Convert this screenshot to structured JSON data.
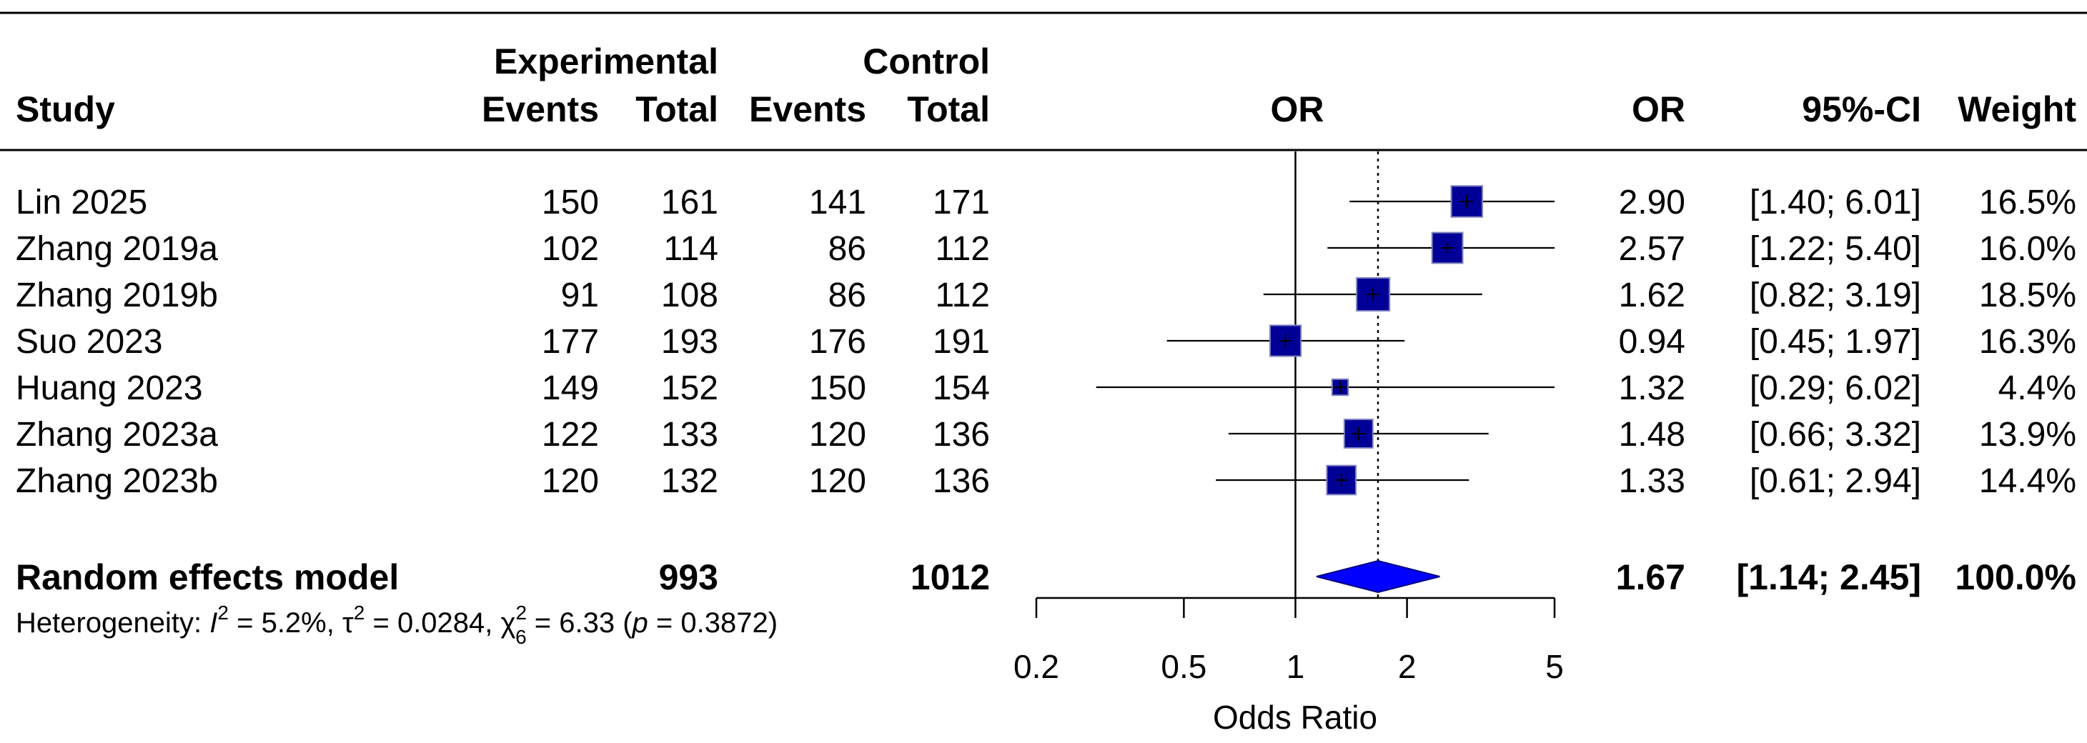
{
  "chart_data": {
    "type": "forest",
    "measure": "OR",
    "xlabel": "Odds Ratio",
    "x_scale": "log",
    "xlim": [
      0.2,
      5
    ],
    "ticks": [
      {
        "value": 0.2,
        "label": "0.2"
      },
      {
        "value": 0.5,
        "label": "0.5"
      },
      {
        "value": 1,
        "label": "1"
      },
      {
        "value": 2,
        "label": "2"
      },
      {
        "value": 5,
        "label": "5"
      }
    ],
    "reference_line": 1,
    "pooled_line": 1.67,
    "headers": {
      "study": "Study",
      "experimental": "Experimental",
      "control": "Control",
      "events": "Events",
      "total": "Total",
      "plot": "OR",
      "or": "OR",
      "ci": "95%-CI",
      "weight": "Weight"
    },
    "studies": [
      {
        "name": "Lin 2025",
        "e_events": "150",
        "e_total": "161",
        "c_events": "141",
        "c_total": "171",
        "or": 2.9,
        "lower": 1.4,
        "upper": 6.01,
        "or_text": "2.90",
        "ci_text": "[1.40; 6.01]",
        "weight": 16.5,
        "weight_text": "16.5%"
      },
      {
        "name": "Zhang 2019a",
        "e_events": "102",
        "e_total": "114",
        "c_events": "86",
        "c_total": "112",
        "or": 2.57,
        "lower": 1.22,
        "upper": 5.4,
        "or_text": "2.57",
        "ci_text": "[1.22; 5.40]",
        "weight": 16.0,
        "weight_text": "16.0%"
      },
      {
        "name": "Zhang 2019b",
        "e_events": "91",
        "e_total": "108",
        "c_events": "86",
        "c_total": "112",
        "or": 1.62,
        "lower": 0.82,
        "upper": 3.19,
        "or_text": "1.62",
        "ci_text": "[0.82; 3.19]",
        "weight": 18.5,
        "weight_text": "18.5%"
      },
      {
        "name": "Suo 2023",
        "e_events": "177",
        "e_total": "193",
        "c_events": "176",
        "c_total": "191",
        "or": 0.94,
        "lower": 0.45,
        "upper": 1.97,
        "or_text": "0.94",
        "ci_text": "[0.45; 1.97]",
        "weight": 16.3,
        "weight_text": "16.3%"
      },
      {
        "name": "Huang 2023",
        "e_events": "149",
        "e_total": "152",
        "c_events": "150",
        "c_total": "154",
        "or": 1.32,
        "lower": 0.29,
        "upper": 6.02,
        "or_text": "1.32",
        "ci_text": "[0.29; 6.02]",
        "weight": 4.4,
        "weight_text": "4.4%"
      },
      {
        "name": "Zhang 2023a",
        "e_events": "122",
        "e_total": "133",
        "c_events": "120",
        "c_total": "136",
        "or": 1.48,
        "lower": 0.66,
        "upper": 3.32,
        "or_text": "1.48",
        "ci_text": "[0.66; 3.32]",
        "weight": 13.9,
        "weight_text": "13.9%"
      },
      {
        "name": "Zhang 2023b",
        "e_events": "120",
        "e_total": "132",
        "c_events": "120",
        "c_total": "136",
        "or": 1.33,
        "lower": 0.61,
        "upper": 2.94,
        "or_text": "1.33",
        "ci_text": "[0.61; 2.94]",
        "weight": 14.4,
        "weight_text": "14.4%"
      }
    ],
    "pooled": {
      "name": "Random effects model",
      "e_total": "993",
      "c_total": "1012",
      "or": 1.67,
      "lower": 1.14,
      "upper": 2.45,
      "or_text": "1.67",
      "ci_text": "[1.14; 2.45]",
      "weight_text": "100.0%"
    },
    "heterogeneity": {
      "prefix": "Heterogeneity: ",
      "i2_symbol": "I",
      "i2_text": " = 5.2%, ",
      "tau2_symbol": "τ",
      "tau2_text": " = 0.0284, ",
      "chi2_symbol": "χ",
      "chi2_df": "6",
      "chi2_text": " = 6.33 (",
      "p_symbol": "p",
      "p_text": " = 0.3872)",
      "superscript": "2"
    },
    "colors": {
      "box": "#000096",
      "box_border": "#8080c0",
      "diamond": "#0000ff",
      "diamond_border": "#000080",
      "line": "#000000"
    }
  }
}
